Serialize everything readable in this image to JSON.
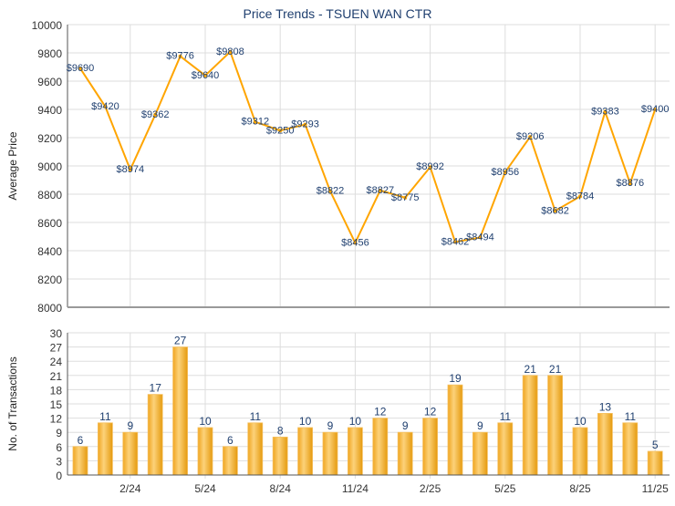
{
  "chart_data": [
    {
      "type": "line",
      "title": "Price Trends - TSUEN WAN CTR",
      "xlabel": "",
      "ylabel": "Average Price",
      "ylim": [
        8000,
        10000
      ],
      "yticks": [
        8000,
        8200,
        8400,
        8600,
        8800,
        9000,
        9200,
        9400,
        9600,
        9800,
        10000
      ],
      "grid": true,
      "color": "#FFA500",
      "values": [
        9690,
        9420,
        8974,
        9362,
        9776,
        9640,
        9808,
        9312,
        9250,
        9293,
        8822,
        8456,
        8827,
        8775,
        8992,
        8462,
        8494,
        8956,
        9206,
        8682,
        8784,
        9383,
        8876,
        9400
      ],
      "value_labels": [
        "$9690",
        "$9420",
        "$8974",
        "$9362",
        "$9776",
        "$9640",
        "$9808",
        "$9312",
        "$9250",
        "$9293",
        "$8822",
        "$8456",
        "$8827",
        "$8775",
        "$8992",
        "$8462",
        "$8494",
        "$8956",
        "$9206",
        "$8682",
        "$8784",
        "$9383",
        "$8876",
        "$9400"
      ]
    },
    {
      "type": "bar",
      "xlabel": "",
      "ylabel": "No. of Transactions",
      "ylim": [
        0,
        30
      ],
      "yticks": [
        0,
        3,
        6,
        9,
        12,
        15,
        18,
        21,
        24,
        27,
        30
      ],
      "grid": true,
      "color": "#F0A020",
      "values": [
        6,
        11,
        9,
        17,
        27,
        10,
        6,
        11,
        8,
        10,
        9,
        10,
        12,
        9,
        12,
        19,
        9,
        11,
        21,
        21,
        10,
        13,
        11,
        5
      ],
      "xticks": [
        {
          "index": 2,
          "label": "2/24"
        },
        {
          "index": 5,
          "label": "5/24"
        },
        {
          "index": 8,
          "label": "8/24"
        },
        {
          "index": 11,
          "label": "11/24"
        },
        {
          "index": 14,
          "label": "2/25"
        },
        {
          "index": 17,
          "label": "5/25"
        },
        {
          "index": 20,
          "label": "8/25"
        },
        {
          "index": 23,
          "label": "11/25"
        }
      ]
    }
  ]
}
